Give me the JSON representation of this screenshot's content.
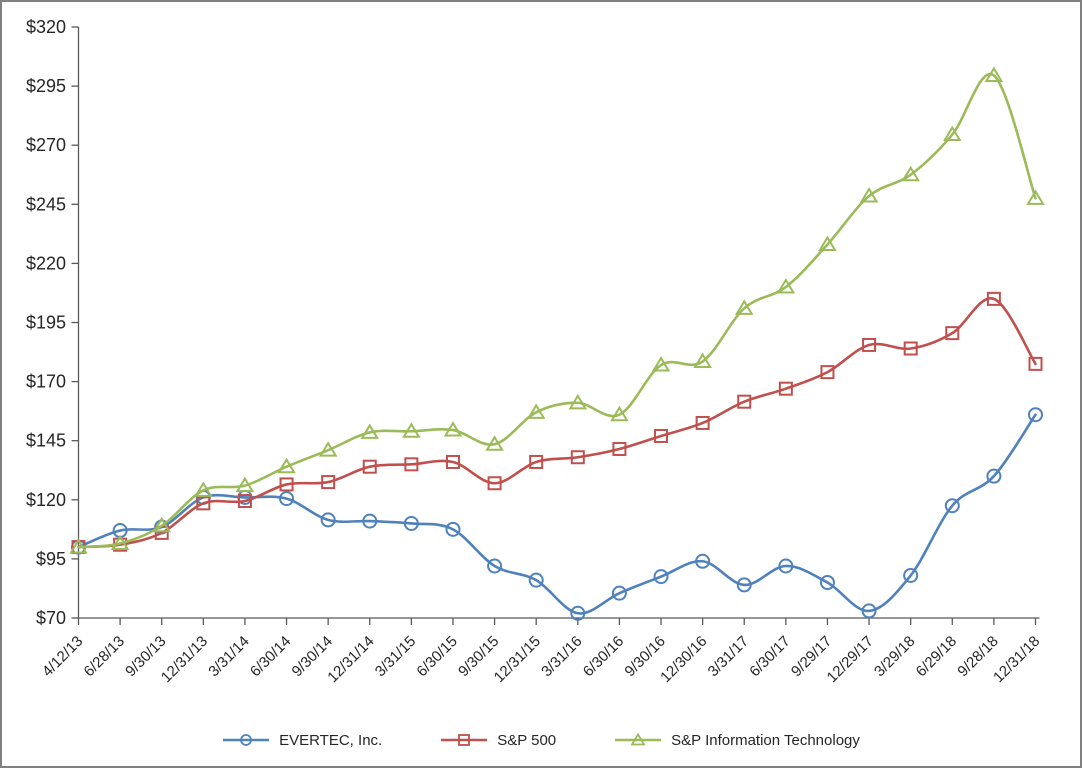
{
  "chart_data": {
    "type": "line",
    "title": "",
    "xlabel": "",
    "ylabel": "",
    "grid": false,
    "legend_position": "bottom",
    "smoothed_lines": true,
    "categories": [
      "4/12/13",
      "6/28/13",
      "9/30/13",
      "12/31/13",
      "3/31/14",
      "6/30/14",
      "9/30/14",
      "12/31/14",
      "3/31/15",
      "6/30/15",
      "9/30/15",
      "12/31/15",
      "3/31/16",
      "6/30/16",
      "9/30/16",
      "12/30/16",
      "3/31/17",
      "6/30/17",
      "9/29/17",
      "12/29/17",
      "3/29/18",
      "6/29/18",
      "9/28/18",
      "12/31/18"
    ],
    "series": [
      {
        "name": "EVERTEC, Inc.",
        "color": "#4F81BD",
        "marker": "circle",
        "values": [
          100,
          107,
          108.5,
          121,
          121,
          120.5,
          111.5,
          111,
          110,
          107.5,
          92,
          86,
          72,
          80.5,
          87.5,
          94,
          84,
          92,
          85,
          73,
          88,
          117.5,
          130,
          156
        ]
      },
      {
        "name": "S&P 500",
        "color": "#C0504D",
        "marker": "square",
        "values": [
          100,
          101,
          106,
          118.5,
          119.5,
          126.5,
          127.5,
          134,
          135,
          136,
          127,
          136,
          138,
          141.5,
          147,
          152.5,
          161.5,
          167,
          174,
          185.5,
          184,
          190.5,
          205,
          177.5
        ]
      },
      {
        "name": "S&P Information Technology",
        "color": "#9BBB59",
        "marker": "triangle",
        "values": [
          100,
          101.5,
          109,
          124,
          126,
          134,
          141,
          148.5,
          149,
          149.5,
          143.5,
          157,
          161,
          156,
          177,
          178.5,
          201,
          210,
          228,
          248.5,
          257.5,
          274.5,
          299.5,
          247.5
        ]
      }
    ],
    "y_axis": {
      "min": 70,
      "max": 320,
      "step": 25,
      "tick_prefix": "$",
      "tick_labels": [
        "$320",
        "$295",
        "$270",
        "$245",
        "$220",
        "$195",
        "$170",
        "$145",
        "$120",
        "$95",
        "$70"
      ]
    },
    "colors": {
      "axis": "#595959",
      "text": "#262626",
      "frame_border": "#808080",
      "background": "#FFFFFF"
    }
  }
}
